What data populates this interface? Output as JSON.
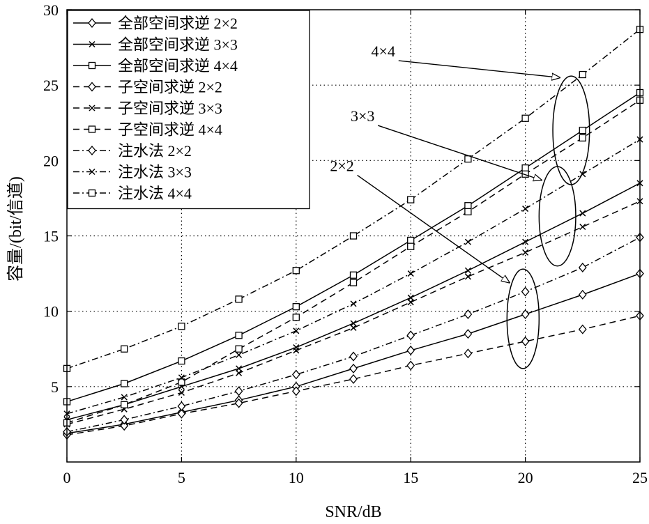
{
  "chart_data": {
    "type": "line",
    "title": "",
    "xlabel": "SNR/dB",
    "ylabel": "容量/(bit/信道)",
    "xlim": [
      0,
      25
    ],
    "ylim": [
      0,
      30
    ],
    "xticks": [
      0,
      5,
      10,
      15,
      20,
      25
    ],
    "yticks": [
      5,
      10,
      15,
      20,
      25,
      30
    ],
    "xtick_labels": [
      "0",
      "5",
      "10",
      "15",
      "20",
      "25"
    ],
    "ytick_labels": [
      "5",
      "10",
      "15",
      "20",
      "25",
      "30"
    ],
    "grid": true,
    "legend_position": "top-left",
    "x": [
      0,
      2.5,
      5,
      7.5,
      10,
      12.5,
      15,
      17.5,
      20,
      22.5,
      25
    ],
    "series": [
      {
        "name": "全部空间求逆 2×2",
        "dash": "solid",
        "marker": "diamond",
        "values": [
          1.9,
          2.5,
          3.3,
          4.1,
          5.0,
          6.2,
          7.4,
          8.5,
          9.8,
          11.1,
          12.5
        ]
      },
      {
        "name": "全部空间求逆 3×3",
        "dash": "solid",
        "marker": "x",
        "values": [
          2.8,
          3.8,
          5.0,
          6.2,
          7.6,
          9.2,
          10.9,
          12.7,
          14.6,
          16.5,
          18.5
        ]
      },
      {
        "name": "全部空间求逆 4×4",
        "dash": "solid",
        "marker": "square",
        "values": [
          4.0,
          5.2,
          6.7,
          8.4,
          10.3,
          12.4,
          14.7,
          17.0,
          19.5,
          22.0,
          24.5
        ]
      },
      {
        "name": "子空间求逆 2×2",
        "dash": "dashed",
        "marker": "diamond",
        "values": [
          1.8,
          2.4,
          3.2,
          3.9,
          4.7,
          5.5,
          6.4,
          7.2,
          8.0,
          8.8,
          9.7
        ]
      },
      {
        "name": "子空间求逆 3×3",
        "dash": "dashed",
        "marker": "x",
        "values": [
          2.5,
          3.5,
          4.6,
          5.9,
          7.4,
          8.9,
          10.6,
          12.3,
          13.9,
          15.6,
          17.3
        ]
      },
      {
        "name": "子空间求逆 4×4",
        "dash": "dashed",
        "marker": "square",
        "values": [
          2.6,
          3.8,
          5.3,
          7.5,
          9.6,
          11.9,
          14.3,
          16.6,
          19.1,
          21.5,
          24.0
        ]
      },
      {
        "name": "注水法 2×2",
        "dash": "dashdot",
        "marker": "diamond",
        "values": [
          2.0,
          2.8,
          3.7,
          4.7,
          5.8,
          7.0,
          8.4,
          9.8,
          11.3,
          12.9,
          14.9
        ]
      },
      {
        "name": "注水法 3×3",
        "dash": "dashdot",
        "marker": "x",
        "values": [
          3.2,
          4.3,
          5.6,
          7.1,
          8.7,
          10.5,
          12.5,
          14.6,
          16.8,
          19.1,
          21.4
        ]
      },
      {
        "name": "注水法 4×4",
        "dash": "dashdot",
        "marker": "square",
        "values": [
          6.2,
          7.5,
          9.0,
          10.8,
          12.7,
          15.0,
          17.4,
          20.1,
          22.8,
          25.7,
          28.7
        ]
      }
    ],
    "annotations": [
      {
        "text": "4×4",
        "target_x": 21.5,
        "target_y": 25.5,
        "label_x": 13.8,
        "label_y": 26.9,
        "ellipse_cx": 22.0,
        "ellipse_cy": 22.0,
        "ellipse_rx": 0.8,
        "ellipse_ry": 3.6
      },
      {
        "text": "3×3",
        "target_x": 20.7,
        "target_y": 18.7,
        "label_x": 12.9,
        "label_y": 22.6,
        "ellipse_cx": 21.4,
        "ellipse_cy": 16.3,
        "ellipse_rx": 0.8,
        "ellipse_ry": 3.3
      },
      {
        "text": "2×2",
        "target_x": 19.3,
        "target_y": 11.9,
        "label_x": 12.0,
        "label_y": 19.3,
        "ellipse_cx": 19.9,
        "ellipse_cy": 9.5,
        "ellipse_rx": 0.7,
        "ellipse_ry": 3.3
      }
    ]
  }
}
